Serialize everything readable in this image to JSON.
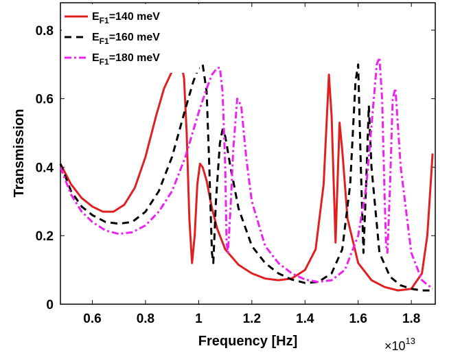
{
  "chart_data": {
    "type": "line",
    "xlabel": "Frequency [Hz]",
    "ylabel": "Transmission",
    "x_multiplier": "×10",
    "x_multiplier_exp": "13",
    "xlim": [
      0.48,
      1.89
    ],
    "ylim": [
      0,
      0.88
    ],
    "xticks": [
      "0.6",
      "0.8",
      "1",
      "1.2",
      "1.4",
      "1.6",
      "1.8"
    ],
    "yticks": [
      "0",
      "0.2",
      "0.4",
      "0.6",
      "0.8"
    ],
    "legend_location": "top-left",
    "series": [
      {
        "name_main": "E",
        "name_sub": "F1",
        "name_rest": "=140 meV",
        "color": "#e02020",
        "style": "solid",
        "x": [
          0.48,
          0.52,
          0.56,
          0.6,
          0.64,
          0.68,
          0.72,
          0.76,
          0.8,
          0.84,
          0.87,
          0.9,
          0.92,
          0.935,
          0.945,
          0.955,
          0.965,
          0.975,
          0.985,
          0.995,
          1.005,
          1.015,
          1.03,
          1.05,
          1.07,
          1.1,
          1.15,
          1.2,
          1.25,
          1.3,
          1.35,
          1.4,
          1.44,
          1.47,
          1.49,
          1.5,
          1.51,
          1.515,
          1.52,
          1.53,
          1.54,
          1.56,
          1.6,
          1.65,
          1.7,
          1.75,
          1.8,
          1.84,
          1.86,
          1.87,
          1.88
        ],
        "y": [
          0.41,
          0.35,
          0.31,
          0.285,
          0.27,
          0.27,
          0.29,
          0.34,
          0.43,
          0.55,
          0.63,
          0.68,
          0.7,
          0.7,
          0.66,
          0.5,
          0.25,
          0.12,
          0.2,
          0.35,
          0.41,
          0.4,
          0.36,
          0.28,
          0.22,
          0.16,
          0.115,
          0.09,
          0.075,
          0.07,
          0.075,
          0.1,
          0.16,
          0.35,
          0.67,
          0.55,
          0.3,
          0.18,
          0.3,
          0.53,
          0.45,
          0.25,
          0.12,
          0.07,
          0.05,
          0.04,
          0.045,
          0.09,
          0.2,
          0.32,
          0.44
        ]
      },
      {
        "name_main": "E",
        "name_sub": "F1",
        "name_rest": "=160 meV",
        "color": "#000000",
        "style": "dashed",
        "x": [
          0.48,
          0.52,
          0.56,
          0.6,
          0.65,
          0.7,
          0.75,
          0.8,
          0.85,
          0.9,
          0.95,
          0.98,
          1.0,
          1.015,
          1.03,
          1.04,
          1.05,
          1.055,
          1.065,
          1.08,
          1.09,
          1.1,
          1.12,
          1.15,
          1.2,
          1.25,
          1.3,
          1.35,
          1.4,
          1.45,
          1.5,
          1.54,
          1.57,
          1.59,
          1.6,
          1.61,
          1.62,
          1.63,
          1.64,
          1.65,
          1.68,
          1.72,
          1.76,
          1.8,
          1.84,
          1.88
        ],
        "y": [
          0.41,
          0.33,
          0.285,
          0.26,
          0.24,
          0.235,
          0.24,
          0.27,
          0.33,
          0.43,
          0.57,
          0.65,
          0.69,
          0.7,
          0.62,
          0.4,
          0.15,
          0.12,
          0.3,
          0.47,
          0.51,
          0.49,
          0.4,
          0.28,
          0.17,
          0.12,
          0.09,
          0.072,
          0.062,
          0.065,
          0.09,
          0.16,
          0.35,
          0.65,
          0.7,
          0.4,
          0.15,
          0.35,
          0.58,
          0.4,
          0.15,
          0.08,
          0.055,
          0.045,
          0.04,
          0.04
        ]
      },
      {
        "name_main": "E",
        "name_sub": "F1",
        "name_rest": "=180 meV",
        "color": "#ee22ee",
        "style": "dashdot",
        "x": [
          0.48,
          0.52,
          0.56,
          0.6,
          0.65,
          0.7,
          0.75,
          0.8,
          0.85,
          0.9,
          0.95,
          1.0,
          1.03,
          1.05,
          1.07,
          1.08,
          1.09,
          1.1,
          1.105,
          1.11,
          1.12,
          1.13,
          1.145,
          1.16,
          1.18,
          1.2,
          1.25,
          1.3,
          1.35,
          1.4,
          1.45,
          1.5,
          1.55,
          1.6,
          1.63,
          1.65,
          1.67,
          1.68,
          1.69,
          1.7,
          1.705,
          1.71,
          1.72,
          1.73,
          1.74,
          1.76,
          1.8,
          1.84,
          1.88
        ],
        "y": [
          0.4,
          0.32,
          0.27,
          0.24,
          0.215,
          0.205,
          0.21,
          0.23,
          0.27,
          0.33,
          0.43,
          0.56,
          0.63,
          0.67,
          0.69,
          0.69,
          0.62,
          0.4,
          0.18,
          0.15,
          0.28,
          0.45,
          0.6,
          0.58,
          0.42,
          0.3,
          0.17,
          0.12,
          0.09,
          0.072,
          0.065,
          0.07,
          0.1,
          0.2,
          0.34,
          0.52,
          0.7,
          0.72,
          0.6,
          0.3,
          0.17,
          0.15,
          0.35,
          0.6,
          0.63,
          0.4,
          0.15,
          0.07,
          0.045
        ]
      }
    ]
  }
}
